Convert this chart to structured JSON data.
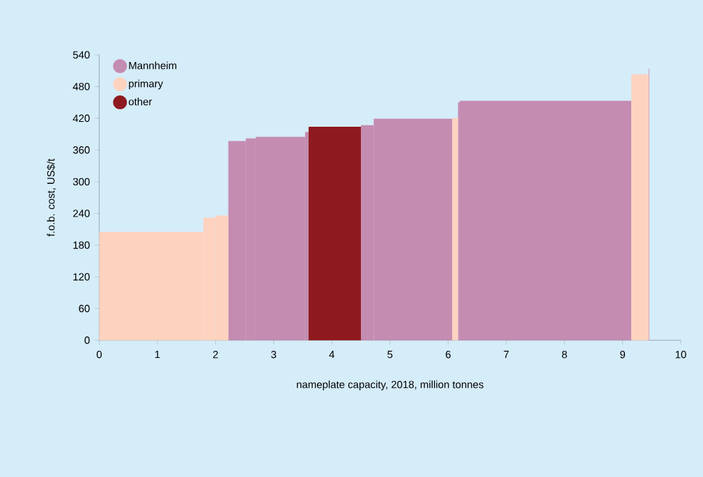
{
  "chart_data": {
    "type": "histogram",
    "xlabel": "nameplate capacity, 2018, million tonnes",
    "ylabel": "f.o.b. cost, US$/t",
    "bins": [
      0,
      1.79,
      2.0,
      2.22,
      2.52,
      2.69,
      3.54,
      3.6,
      4.5,
      4.72,
      6.07,
      6.17,
      6.2,
      9.15,
      9.45,
      9.46
    ],
    "series": [
      {
        "name": "Mannheim",
        "color": "#c48cb0",
        "values": [
          null,
          null,
          null,
          377,
          382,
          385,
          394,
          null,
          407,
          419,
          null,
          450,
          453,
          null,
          514
        ]
      },
      {
        "name": "primary",
        "color": "#fdd3c0",
        "values": [
          205,
          232,
          236,
          null,
          null,
          null,
          null,
          null,
          null,
          null,
          420,
          null,
          null,
          503,
          null
        ]
      },
      {
        "name": "other",
        "color": "#8e1a1f",
        "values": [
          null,
          null,
          null,
          null,
          null,
          null,
          null,
          404,
          null,
          null,
          null,
          null,
          null,
          null,
          null
        ]
      }
    ],
    "xlim": [
      0,
      10
    ],
    "xticks": [
      0,
      1,
      2,
      3,
      4,
      5,
      6,
      7,
      8,
      9,
      10
    ],
    "ylim": [
      0,
      540
    ],
    "yticks": [
      0,
      60,
      120,
      180,
      240,
      300,
      360,
      420,
      480,
      540
    ],
    "legend": "top left"
  }
}
